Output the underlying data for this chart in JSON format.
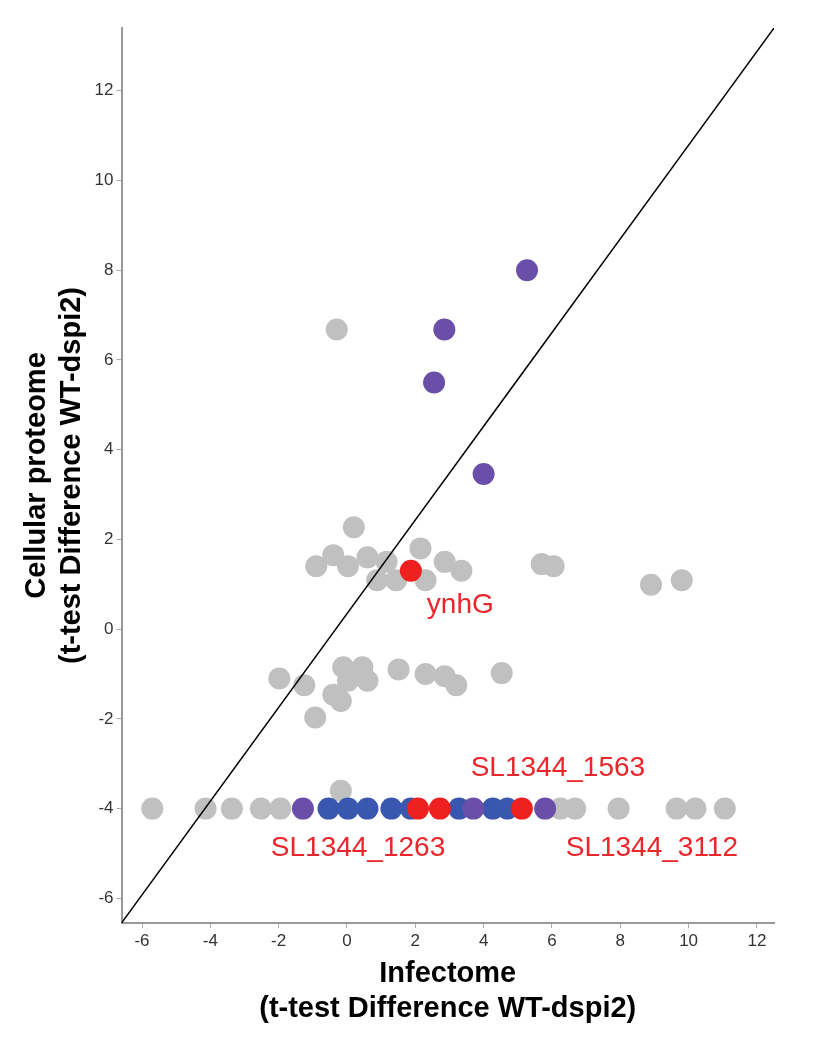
{
  "chart_data": {
    "type": "scatter",
    "xlabel": "Infectome\n(t-test Difference WT-dspi2)",
    "ylabel": "Cellular proteome\n(t-test Difference WT-dspi2)",
    "xlim": [
      -6.6,
      12.5
    ],
    "ylim": [
      -6.55,
      13.4
    ],
    "xticks": [
      -6,
      -4,
      -2,
      0,
      2,
      4,
      6,
      8,
      10,
      12
    ],
    "yticks": [
      -6,
      -4,
      -2,
      0,
      2,
      4,
      6,
      8,
      10,
      12
    ],
    "grid": false,
    "legend": false,
    "marker": "circle",
    "series": [
      {
        "color": "#c0c0c0",
        "x": [
          -0.3,
          0.2,
          -0.9,
          -0.4,
          0.03,
          0.6,
          1.16,
          0.88,
          1.44,
          2.15,
          2.3,
          2.86,
          3.35,
          5.7,
          6.05,
          8.9,
          9.8,
          -1.98,
          -1.25,
          -0.93,
          -0.4,
          -0.11,
          0.03,
          0.45,
          0.6,
          -0.18,
          1.51,
          2.3,
          2.86,
          3.2,
          4.53,
          -5.7,
          -4.14,
          -3.37,
          -2.52,
          -1.95,
          -0.18,
          6.25,
          6.68,
          7.95,
          9.65,
          10.2,
          11.06
        ],
        "values": [
          6.68,
          2.27,
          1.4,
          1.65,
          1.4,
          1.6,
          1.5,
          1.09,
          1.09,
          1.8,
          1.09,
          1.5,
          1.3,
          1.45,
          1.4,
          0.99,
          1.09,
          -1.1,
          -1.25,
          -1.97,
          -1.46,
          -0.85,
          -1.15,
          -0.85,
          -1.15,
          -1.6,
          -0.9,
          -1.0,
          -1.05,
          -1.25,
          -0.98,
          -4,
          -4,
          -4,
          -4,
          -4,
          -3.6,
          -4,
          -4,
          -4,
          -4,
          -4,
          -4
        ]
      },
      {
        "color": "#3a57b0",
        "x": [
          -0.54,
          0.03,
          0.6,
          1.3,
          1.87,
          3.28,
          4.27,
          4.7
        ],
        "values": [
          -4,
          -4,
          -4,
          -4,
          -4,
          -4,
          -4,
          -4
        ]
      },
      {
        "color": "#6a4fa8",
        "x": [
          5.27,
          2.85,
          2.55,
          4.0,
          -1.29,
          3.7,
          5.8
        ],
        "values": [
          8.0,
          6.68,
          5.5,
          3.46,
          -4,
          -4,
          -4
        ]
      },
      {
        "color": "#ee2020",
        "x": [
          1.87,
          2.08,
          2.72,
          5.12
        ],
        "values": [
          1.3,
          -4,
          -4,
          -4
        ]
      },
      {
        "type": "line",
        "color": "#000000",
        "marker": "none",
        "x": [
          -6.6,
          12.5
        ],
        "values": [
          -6.55,
          13.4
        ]
      }
    ],
    "annotations": [
      {
        "text": "ynhG",
        "x": 1.87,
        "y": 1.3
      },
      {
        "text": "SL1344_1263",
        "x": 2.08,
        "y": -4
      },
      {
        "text": "SL1344_1563",
        "x": 2.72,
        "y": -4
      },
      {
        "text": "SL1344_3112",
        "x": 5.12,
        "y": -4
      }
    ]
  }
}
